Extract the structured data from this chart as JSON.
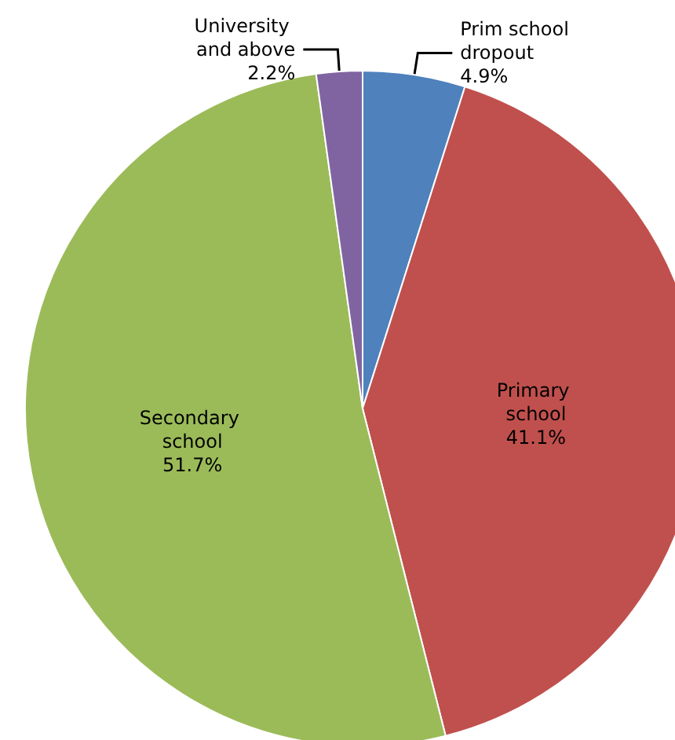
{
  "chart_data": {
    "type": "pie",
    "categories": [
      "Prim school dropout",
      "Primary school",
      "Secondary school",
      "University and above"
    ],
    "values": [
      4.9,
      41.1,
      51.7,
      2.2
    ],
    "colors": [
      "#4f81bd",
      "#c0504d",
      "#9bbb59",
      "#8064a2"
    ],
    "value_labels": [
      "4.9%",
      "41.1%",
      "51.7%",
      "2.2%"
    ]
  }
}
